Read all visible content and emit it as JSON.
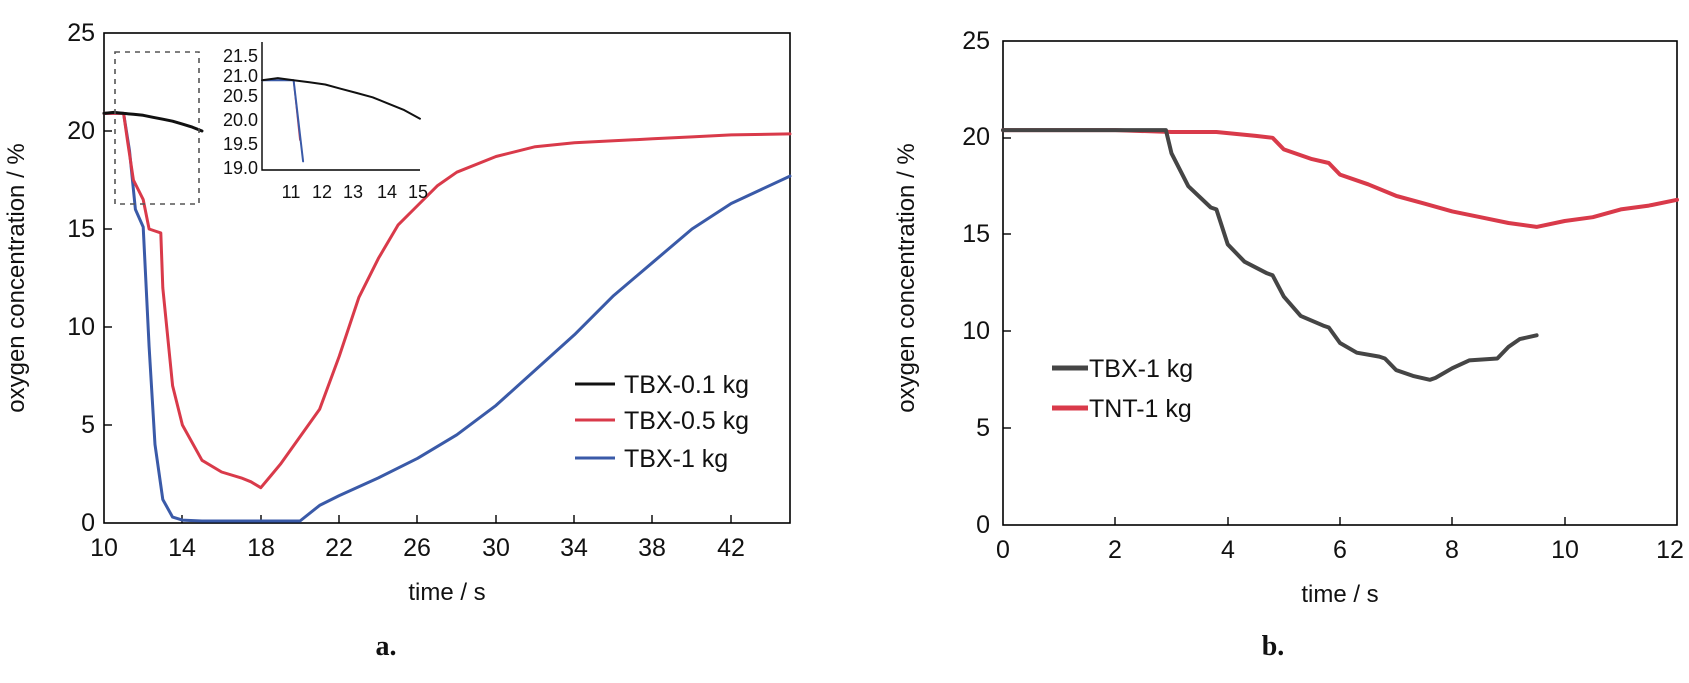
{
  "figure": {
    "panels": [
      {
        "caption": "a.",
        "xlabel": "time / s",
        "ylabel": "oxygen concentration / %",
        "xticks": [
          "10",
          "14",
          "18",
          "22",
          "26",
          "30",
          "34",
          "38",
          "42"
        ],
        "yticks": [
          "0",
          "5",
          "10",
          "15",
          "20",
          "25"
        ],
        "legend": [
          "TBX-0.1 kg",
          "TBX-0.5 kg",
          "TBX-1 kg"
        ],
        "inset": {
          "xticks": [
            "11",
            "12",
            "13",
            "14",
            "15"
          ],
          "yticks": [
            "19.0",
            "19.5",
            "20.0",
            "20.5",
            "21.0",
            "21.5"
          ]
        }
      },
      {
        "caption": "b.",
        "xlabel": "time / s",
        "ylabel": "oxygen concentration / %",
        "xticks": [
          "0",
          "2",
          "4",
          "6",
          "8",
          "10",
          "12"
        ],
        "yticks": [
          "0",
          "5",
          "10",
          "15",
          "20",
          "25"
        ],
        "legend": [
          "TBX-1 kg",
          "TNT-1 kg"
        ]
      }
    ]
  },
  "colors": {
    "black": "#111111",
    "red": "#d93a4a",
    "blue": "#3a5aa8",
    "gray": "#454545"
  },
  "chart_data": [
    {
      "type": "line",
      "xlabel": "time / s",
      "ylabel": "oxygen concentration / %",
      "xlim": [
        10,
        45
      ],
      "ylim": [
        0,
        25
      ],
      "legend_position": "center-right",
      "series": [
        {
          "name": "TBX-0.1 kg",
          "x": [
            10,
            10.5,
            11,
            11.5,
            12,
            12.5,
            13,
            13.5,
            14,
            14.5,
            15
          ],
          "y": [
            20.9,
            20.95,
            20.9,
            20.85,
            20.8,
            20.7,
            20.6,
            20.5,
            20.35,
            20.2,
            20.0
          ]
        },
        {
          "name": "TBX-0.5 kg",
          "x": [
            10,
            11,
            11.2,
            11.5,
            12,
            12.3,
            12.6,
            12.9,
            13,
            13.5,
            14,
            15,
            16,
            17,
            17.5,
            18,
            18.5,
            19,
            20,
            21,
            22,
            23,
            24,
            25,
            26,
            27,
            28,
            30,
            32,
            34,
            36,
            38,
            40,
            42,
            45
          ],
          "y": [
            20.9,
            20.9,
            19.5,
            17.5,
            16.5,
            15.0,
            14.9,
            14.8,
            12.0,
            7.0,
            5.0,
            3.2,
            2.6,
            2.3,
            2.1,
            1.8,
            2.4,
            3.0,
            4.4,
            5.8,
            8.5,
            11.5,
            13.5,
            15.2,
            16.2,
            17.2,
            17.9,
            18.7,
            19.2,
            19.4,
            19.5,
            19.6,
            19.7,
            19.8,
            19.85
          ]
        },
        {
          "name": "TBX-1 kg",
          "x": [
            10,
            11,
            11.3,
            11.6,
            12,
            12.3,
            12.6,
            13,
            13.5,
            14,
            15,
            18,
            20,
            21,
            22,
            24,
            26,
            28,
            30,
            32,
            34,
            36,
            38,
            40,
            42,
            45
          ],
          "y": [
            20.9,
            20.9,
            19.0,
            16.0,
            15.1,
            9.0,
            4.0,
            1.2,
            0.3,
            0.15,
            0.1,
            0.1,
            0.1,
            0.9,
            1.4,
            2.3,
            3.3,
            4.5,
            6.0,
            7.8,
            9.6,
            11.6,
            13.3,
            15.0,
            16.3,
            17.7
          ]
        }
      ]
    },
    {
      "type": "line",
      "xlabel": "time / s",
      "ylabel": "oxygen concentration / %",
      "xlim": [
        0,
        12
      ],
      "ylim": [
        0,
        25
      ],
      "legend_position": "center-left",
      "series": [
        {
          "name": "TBX-1 kg",
          "x": [
            0,
            1,
            2,
            2.9,
            3.0,
            3.3,
            3.7,
            3.8,
            4.0,
            4.3,
            4.7,
            4.8,
            5.0,
            5.3,
            5.7,
            5.8,
            6.0,
            6.3,
            6.7,
            6.8,
            7.0,
            7.3,
            7.6,
            7.7,
            8.0,
            8.3,
            8.8,
            9.0,
            9.2,
            9.5
          ],
          "y": [
            20.4,
            20.4,
            20.4,
            20.4,
            19.2,
            17.5,
            16.4,
            16.3,
            14.5,
            13.6,
            13.0,
            12.9,
            11.8,
            10.8,
            10.3,
            10.2,
            9.4,
            8.9,
            8.7,
            8.6,
            8.0,
            7.7,
            7.5,
            7.6,
            8.1,
            8.5,
            8.6,
            9.2,
            9.6,
            9.8
          ]
        },
        {
          "name": "TNT-1 kg",
          "x": [
            0,
            1,
            2,
            3,
            3.8,
            4.5,
            4.8,
            5.0,
            5.5,
            5.8,
            6.0,
            6.5,
            7.0,
            7.5,
            8.0,
            8.5,
            9.0,
            9.5,
            10,
            10.5,
            11,
            11.5,
            12
          ],
          "y": [
            20.4,
            20.4,
            20.4,
            20.3,
            20.3,
            20.1,
            20.0,
            19.4,
            18.9,
            18.7,
            18.1,
            17.6,
            17.0,
            16.6,
            16.2,
            15.9,
            15.6,
            15.4,
            15.7,
            15.9,
            16.3,
            16.5,
            16.8
          ]
        }
      ]
    }
  ]
}
